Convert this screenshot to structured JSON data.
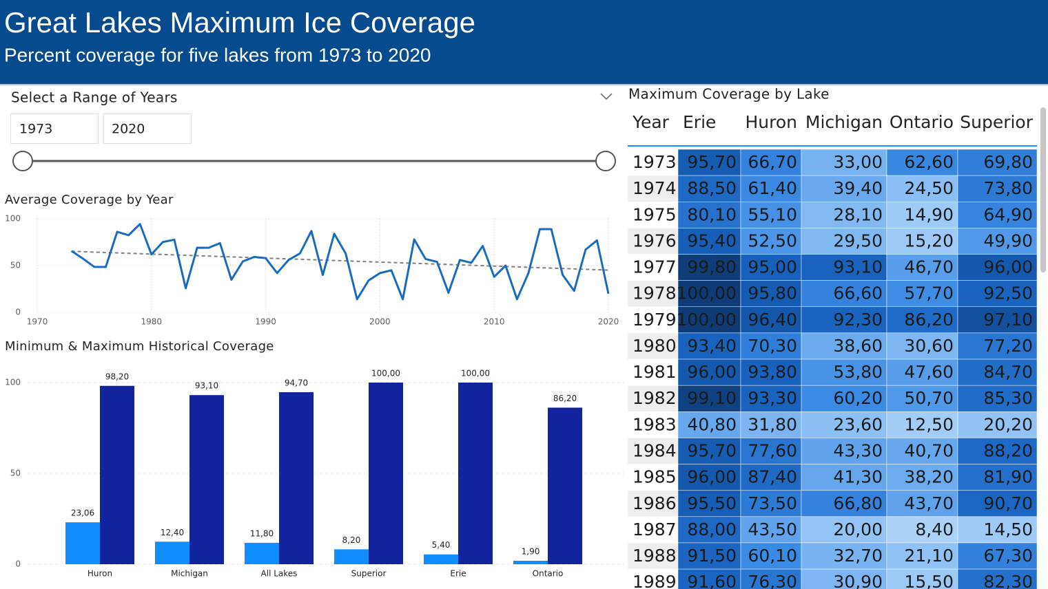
{
  "header": {
    "title": "Great Lakes Maximum Ice Coverage",
    "subtitle": "Percent coverage for five lakes from 1973 to 2020"
  },
  "slicer": {
    "title": "Select a Range of Years",
    "start": "1973",
    "end": "2020"
  },
  "chart_data": [
    {
      "type": "line",
      "title": "Average Coverage by Year",
      "color": "#1a6bbf",
      "grid": true,
      "x": [
        1973,
        1974,
        1975,
        1976,
        1977,
        1978,
        1979,
        1980,
        1981,
        1982,
        1983,
        1984,
        1985,
        1986,
        1987,
        1988,
        1989,
        1990,
        1991,
        1992,
        1993,
        1994,
        1995,
        1996,
        1997,
        1998,
        1999,
        2000,
        2001,
        2002,
        2003,
        2004,
        2005,
        2006,
        2007,
        2008,
        2009,
        2010,
        2011,
        2012,
        2013,
        2014,
        2015,
        2016,
        2017,
        2018,
        2019,
        2020
      ],
      "values": [
        65.6,
        57.5,
        48.6,
        48.5,
        86.1,
        82.5,
        94.4,
        62.0,
        75.2,
        77.7,
        25.8,
        69.1,
        69.0,
        74.0,
        34.9,
        54.5,
        59.3,
        58,
        42,
        56,
        63,
        87,
        40,
        84,
        63,
        14,
        34,
        42,
        45,
        14,
        78,
        57,
        54,
        21,
        56,
        53,
        71,
        38,
        50,
        14,
        42,
        89,
        89,
        40,
        23,
        67,
        77,
        20
      ],
      "trend": {
        "x": [
          1973,
          2020
        ],
        "values": [
          65.3,
          45.2
        ],
        "color": "#7f7f7f"
      },
      "xlim": [
        1970,
        2020
      ],
      "xticks": [
        1970,
        1980,
        1990,
        2000,
        2010,
        2020
      ],
      "ylim": [
        0,
        100
      ],
      "yticks": [
        0,
        50,
        100
      ]
    },
    {
      "type": "bar",
      "title": "Minimum & Maximum Historical Coverage",
      "grid": true,
      "categories": [
        "Huron",
        "Michigan",
        "All Lakes",
        "Superior",
        "Erie",
        "Ontario"
      ],
      "series": [
        {
          "color": "#118dff",
          "values": [
            23.06,
            12.4,
            11.8,
            8.2,
            5.4,
            1.9
          ],
          "value_labels": [
            "23,06",
            "12,40",
            "11,80",
            "8,20",
            "5,40",
            "1,90"
          ]
        },
        {
          "color": "#12239e",
          "values": [
            98.2,
            93.1,
            94.7,
            100,
            100,
            86.2
          ],
          "value_labels": [
            "98,20",
            "93,10",
            "94,70",
            "100,00",
            "100,00",
            "86,20"
          ]
        }
      ],
      "ylim": [
        0,
        100
      ],
      "yticks": [
        0,
        50,
        100
      ]
    }
  ],
  "table": {
    "title": "Maximum Coverage by Lake",
    "columns": [
      "Year",
      "Erie",
      "Huron",
      "Michigan",
      "Ontario",
      "Superior"
    ],
    "color_scale": [
      [
        0,
        "#bddcfb"
      ],
      [
        30,
        "#7fb7f2"
      ],
      [
        60,
        "#3b8ae4"
      ],
      [
        95,
        "#1761bd"
      ],
      [
        100,
        "#0e3b76"
      ]
    ],
    "rows": [
      [
        "1973",
        "95,70",
        "66,70",
        "33,00",
        "62,60",
        "69,80"
      ],
      [
        "1974",
        "88,50",
        "61,40",
        "39,40",
        "24,50",
        "73,80"
      ],
      [
        "1975",
        "80,10",
        "55,10",
        "28,10",
        "14,90",
        "64,90"
      ],
      [
        "1976",
        "95,40",
        "52,50",
        "29,50",
        "15,20",
        "49,90"
      ],
      [
        "1977",
        "99,80",
        "95,00",
        "93,10",
        "46,70",
        "96,00"
      ],
      [
        "1978",
        "100,00",
        "95,80",
        "66,60",
        "57,70",
        "92,50"
      ],
      [
        "1979",
        "100,00",
        "96,40",
        "92,30",
        "86,20",
        "97,10"
      ],
      [
        "1980",
        "93,40",
        "70,30",
        "38,60",
        "30,60",
        "77,20"
      ],
      [
        "1981",
        "96,00",
        "93,80",
        "53,80",
        "47,60",
        "84,70"
      ],
      [
        "1982",
        "99,10",
        "93,30",
        "60,20",
        "50,70",
        "85,30"
      ],
      [
        "1983",
        "40,80",
        "31,80",
        "23,60",
        "12,50",
        "20,20"
      ],
      [
        "1984",
        "95,70",
        "77,60",
        "43,30",
        "40,70",
        "88,20"
      ],
      [
        "1985",
        "96,00",
        "87,40",
        "41,30",
        "38,20",
        "81,90"
      ],
      [
        "1986",
        "95,50",
        "73,50",
        "66,80",
        "43,70",
        "90,70"
      ],
      [
        "1987",
        "88,00",
        "43,50",
        "20,00",
        "8,40",
        "14,50"
      ],
      [
        "1988",
        "91,50",
        "60,10",
        "32,70",
        "21,10",
        "67,30"
      ],
      [
        "1989",
        "91,60",
        "76,30",
        "30,90",
        "15,50",
        "82,30"
      ]
    ]
  }
}
